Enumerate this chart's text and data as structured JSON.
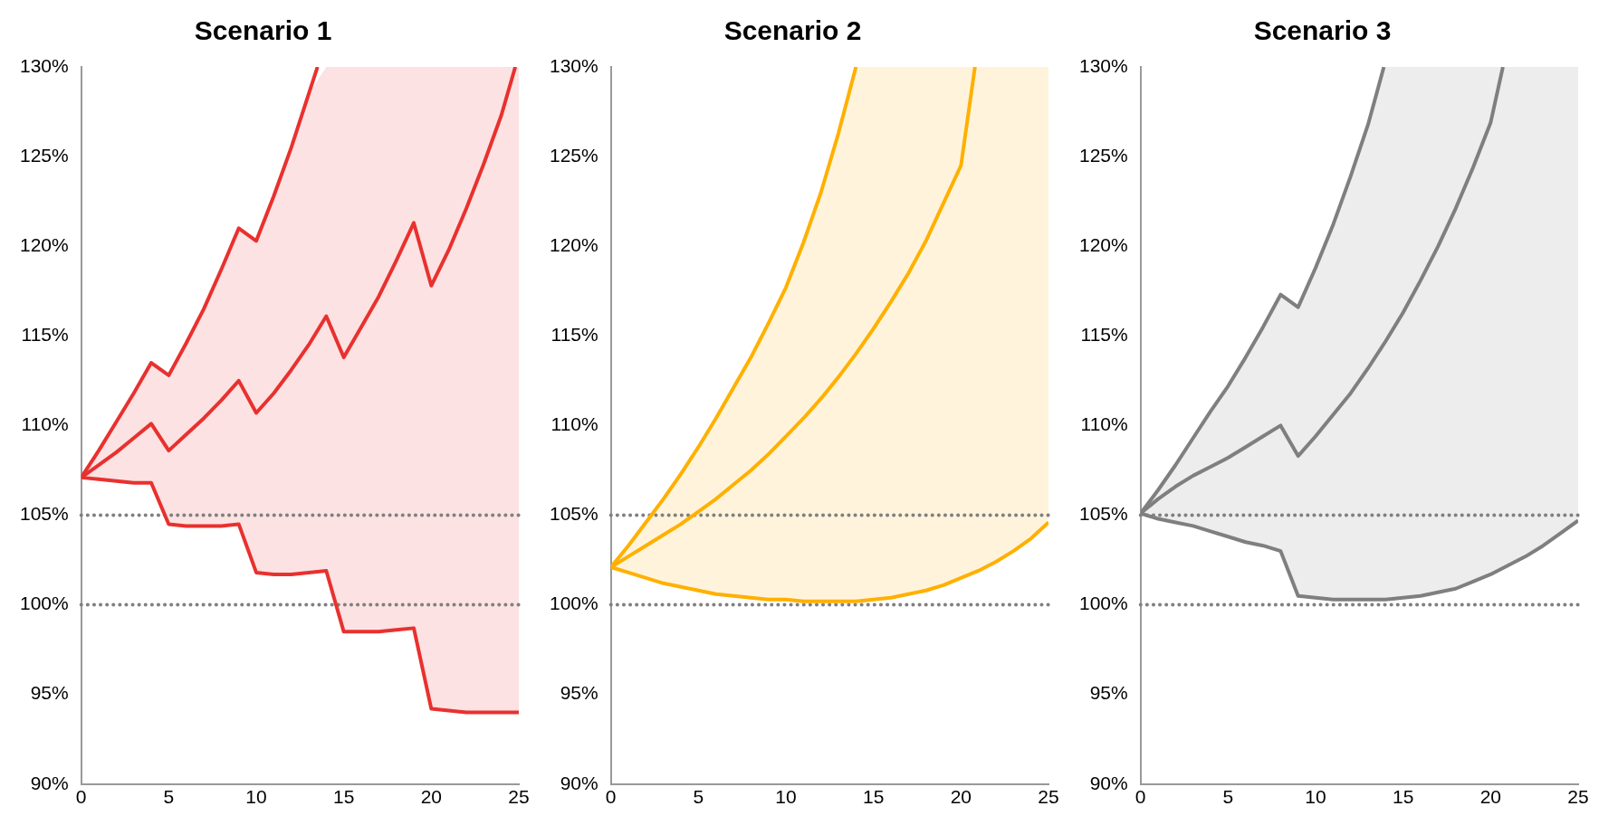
{
  "chart_data": [
    {
      "type": "line",
      "title": "Scenario 1",
      "x": [
        0,
        1,
        2,
        3,
        4,
        5,
        6,
        7,
        8,
        9,
        10,
        11,
        12,
        13,
        14,
        15,
        16,
        17,
        18,
        19,
        20,
        21,
        22,
        23,
        24,
        25
      ],
      "xlim": [
        0,
        25
      ],
      "xticks": [
        0,
        5,
        10,
        15,
        20,
        25
      ],
      "ylim": [
        90,
        130
      ],
      "yticks": [
        {
          "value": 90,
          "label": "90%"
        },
        {
          "value": 95,
          "label": "95%"
        },
        {
          "value": 100,
          "label": "100%"
        },
        {
          "value": 105,
          "label": "105%"
        },
        {
          "value": 110,
          "label": "110%"
        },
        {
          "value": 115,
          "label": "115%"
        },
        {
          "value": 120,
          "label": "120%"
        },
        {
          "value": 125,
          "label": "125%"
        },
        {
          "value": 130,
          "label": "130%"
        }
      ],
      "marker": "none",
      "line_style": "solid",
      "ref_lines": [
        {
          "axis": "y",
          "value": 100,
          "color": "#808080",
          "line_style": "dotted"
        },
        {
          "axis": "y",
          "value": 105,
          "color": "#808080",
          "line_style": "dotted"
        }
      ],
      "series": [
        {
          "color": "#e8312f",
          "x": [
            0,
            1,
            2,
            3,
            4,
            5,
            6,
            7,
            8,
            9,
            10,
            11,
            12,
            13,
            13.5
          ],
          "values": [
            107.1,
            108.6,
            110.2,
            111.8,
            113.5,
            112.8,
            114.6,
            116.5,
            118.7,
            121.0,
            120.3,
            122.8,
            125.5,
            128.5,
            130
          ]
        },
        {
          "color": "#e8312f",
          "x": [
            0,
            1,
            2,
            3,
            4,
            5,
            6,
            7,
            8,
            9,
            10,
            11,
            12,
            13,
            14,
            15,
            16,
            17,
            18,
            19,
            20,
            21,
            22,
            23,
            24,
            24.8
          ],
          "values": [
            107.1,
            107.8,
            108.5,
            109.3,
            110.1,
            108.6,
            109.5,
            110.4,
            111.4,
            112.5,
            110.7,
            111.8,
            113.1,
            114.5,
            116.1,
            113.8,
            115.5,
            117.2,
            119.2,
            121.3,
            117.8,
            119.8,
            122.1,
            124.6,
            127.3,
            130
          ]
        },
        {
          "color": "#e8312f",
          "values": [
            107.1,
            107.0,
            106.9,
            106.8,
            106.8,
            104.5,
            104.4,
            104.4,
            104.4,
            104.5,
            101.8,
            101.7,
            101.7,
            101.8,
            101.9,
            98.5,
            98.5,
            98.5,
            98.6,
            98.7,
            94.2,
            94.1,
            94.0,
            94.0,
            94.0,
            94.0
          ],
          "lower": [
            107.1,
            107.0,
            106.9,
            106.8,
            106.8,
            104.5,
            104.4,
            104.4,
            104.4,
            104.5,
            101.8,
            101.7,
            101.7,
            101.8,
            101.9,
            98.5,
            98.5,
            98.5,
            98.6,
            98.7,
            94.2,
            94.1,
            94.0,
            94.0,
            94.0,
            94.0
          ],
          "upper": [
            107.1,
            108.6,
            110.2,
            111.8,
            113.5,
            112.8,
            114.6,
            116.5,
            118.7,
            121.0,
            120.3,
            122.8,
            125.5,
            128.5,
            130,
            130,
            130,
            130,
            130,
            130,
            130,
            130,
            130,
            130,
            130,
            130
          ]
        }
      ]
    },
    {
      "type": "line",
      "title": "Scenario 2",
      "x": [
        0,
        1,
        2,
        3,
        4,
        5,
        6,
        7,
        8,
        9,
        10,
        11,
        12,
        13,
        14,
        15,
        16,
        17,
        18,
        19,
        20,
        21,
        22,
        23,
        24,
        25
      ],
      "xlim": [
        0,
        25
      ],
      "xticks": [
        0,
        5,
        10,
        15,
        20,
        25
      ],
      "ylim": [
        90,
        130
      ],
      "yticks": [
        {
          "value": 90,
          "label": "90%"
        },
        {
          "value": 95,
          "label": "95%"
        },
        {
          "value": 100,
          "label": "100%"
        },
        {
          "value": 105,
          "label": "105%"
        },
        {
          "value": 110,
          "label": "110%"
        },
        {
          "value": 115,
          "label": "115%"
        },
        {
          "value": 120,
          "label": "120%"
        },
        {
          "value": 125,
          "label": "125%"
        },
        {
          "value": 130,
          "label": "130%"
        }
      ],
      "marker": "none",
      "line_style": "solid",
      "ref_lines": [
        {
          "axis": "y",
          "value": 100,
          "color": "#808080",
          "line_style": "dotted"
        },
        {
          "axis": "y",
          "value": 105,
          "color": "#808080",
          "line_style": "dotted"
        }
      ],
      "series": [
        {
          "color": "#ffb000",
          "x": [
            0,
            1,
            2,
            3,
            4,
            5,
            6,
            7,
            8,
            9,
            10,
            11,
            12,
            13,
            14
          ],
          "values": [
            102.1,
            103.3,
            104.6,
            105.9,
            107.3,
            108.8,
            110.4,
            112.1,
            113.8,
            115.7,
            117.7,
            120.2,
            123.0,
            126.3,
            130
          ]
        },
        {
          "color": "#ffb000",
          "x": [
            0,
            1,
            2,
            3,
            4,
            5,
            6,
            7,
            8,
            9,
            10,
            11,
            12,
            13,
            14,
            15,
            16,
            17,
            18,
            19,
            20,
            20.8
          ],
          "values": [
            102.1,
            102.7,
            103.3,
            103.9,
            104.5,
            105.2,
            105.9,
            106.7,
            107.5,
            108.4,
            109.4,
            110.4,
            111.5,
            112.7,
            114.0,
            115.4,
            116.9,
            118.5,
            120.3,
            122.4,
            124.5,
            130
          ]
        },
        {
          "color": "#ffb000",
          "values": [
            102.1,
            101.8,
            101.5,
            101.2,
            101.0,
            100.8,
            100.6,
            100.5,
            100.4,
            100.3,
            100.3,
            100.2,
            100.2,
            100.2,
            100.2,
            100.3,
            100.4,
            100.6,
            100.8,
            101.1,
            101.5,
            101.9,
            102.4,
            103.0,
            103.7,
            104.6
          ],
          "lower": [
            102.1,
            101.8,
            101.5,
            101.2,
            101.0,
            100.8,
            100.6,
            100.5,
            100.4,
            100.3,
            100.3,
            100.2,
            100.2,
            100.2,
            100.2,
            100.3,
            100.4,
            100.6,
            100.8,
            101.1,
            101.5,
            101.9,
            102.4,
            103.0,
            103.7,
            104.6
          ],
          "upper": [
            102.1,
            103.3,
            104.6,
            105.9,
            107.3,
            108.8,
            110.4,
            112.1,
            113.8,
            115.7,
            117.7,
            120.2,
            123.0,
            126.3,
            130,
            130,
            130,
            130,
            130,
            130,
            130,
            130,
            130,
            130,
            130,
            130
          ]
        }
      ]
    },
    {
      "type": "line",
      "title": "Scenario 3",
      "x": [
        0,
        1,
        2,
        3,
        4,
        5,
        6,
        7,
        8,
        9,
        10,
        11,
        12,
        13,
        14,
        15,
        16,
        17,
        18,
        19,
        20,
        21,
        22,
        23,
        24,
        25
      ],
      "xlim": [
        0,
        25
      ],
      "xticks": [
        0,
        5,
        10,
        15,
        20,
        25
      ],
      "ylim": [
        90,
        130
      ],
      "yticks": [
        {
          "value": 90,
          "label": "90%"
        },
        {
          "value": 95,
          "label": "95%"
        },
        {
          "value": 100,
          "label": "100%"
        },
        {
          "value": 105,
          "label": "105%"
        },
        {
          "value": 110,
          "label": "110%"
        },
        {
          "value": 115,
          "label": "115%"
        },
        {
          "value": 120,
          "label": "120%"
        },
        {
          "value": 125,
          "label": "125%"
        },
        {
          "value": 130,
          "label": "130%"
        }
      ],
      "marker": "none",
      "line_style": "solid",
      "ref_lines": [
        {
          "axis": "y",
          "value": 100,
          "color": "#808080",
          "line_style": "dotted"
        },
        {
          "axis": "y",
          "value": 105,
          "color": "#808080",
          "line_style": "dotted"
        }
      ],
      "series": [
        {
          "color": "#7f7f80",
          "x": [
            0,
            1,
            2,
            3,
            4,
            5,
            6,
            7,
            8,
            9,
            10,
            11,
            12,
            13,
            13.9
          ],
          "values": [
            105.1,
            106.4,
            107.8,
            109.3,
            110.8,
            112.2,
            113.8,
            115.5,
            117.3,
            116.6,
            118.8,
            121.2,
            123.9,
            126.8,
            130
          ]
        },
        {
          "color": "#7f7f80",
          "x": [
            0,
            1,
            2,
            3,
            4,
            5,
            6,
            7,
            8,
            9,
            10,
            11,
            12,
            13,
            14,
            15,
            16,
            17,
            18,
            19,
            20,
            20.7
          ],
          "values": [
            105.1,
            105.9,
            106.6,
            107.2,
            107.7,
            108.2,
            108.8,
            109.4,
            110.0,
            108.3,
            109.4,
            110.6,
            111.8,
            113.2,
            114.7,
            116.3,
            118.1,
            120.0,
            122.1,
            124.4,
            126.9,
            130
          ]
        },
        {
          "color": "#7f7f80",
          "values": [
            105.1,
            104.8,
            104.6,
            104.4,
            104.1,
            103.8,
            103.5,
            103.3,
            103.0,
            100.5,
            100.4,
            100.3,
            100.3,
            100.3,
            100.3,
            100.4,
            100.5,
            100.7,
            100.9,
            101.3,
            101.7,
            102.2,
            102.7,
            103.3,
            104.0,
            104.7
          ],
          "lower": [
            105.1,
            104.8,
            104.6,
            104.4,
            104.1,
            103.8,
            103.5,
            103.3,
            103.0,
            100.5,
            100.4,
            100.3,
            100.3,
            100.3,
            100.3,
            100.4,
            100.5,
            100.7,
            100.9,
            101.3,
            101.7,
            102.2,
            102.7,
            103.3,
            104.0,
            104.7
          ],
          "upper": [
            105.1,
            106.4,
            107.8,
            109.3,
            110.8,
            112.2,
            113.8,
            115.5,
            117.3,
            116.6,
            118.8,
            121.2,
            123.9,
            126.8,
            130,
            130,
            130,
            130,
            130,
            130,
            130,
            130,
            130,
            130,
            130,
            130
          ]
        }
      ]
    }
  ]
}
